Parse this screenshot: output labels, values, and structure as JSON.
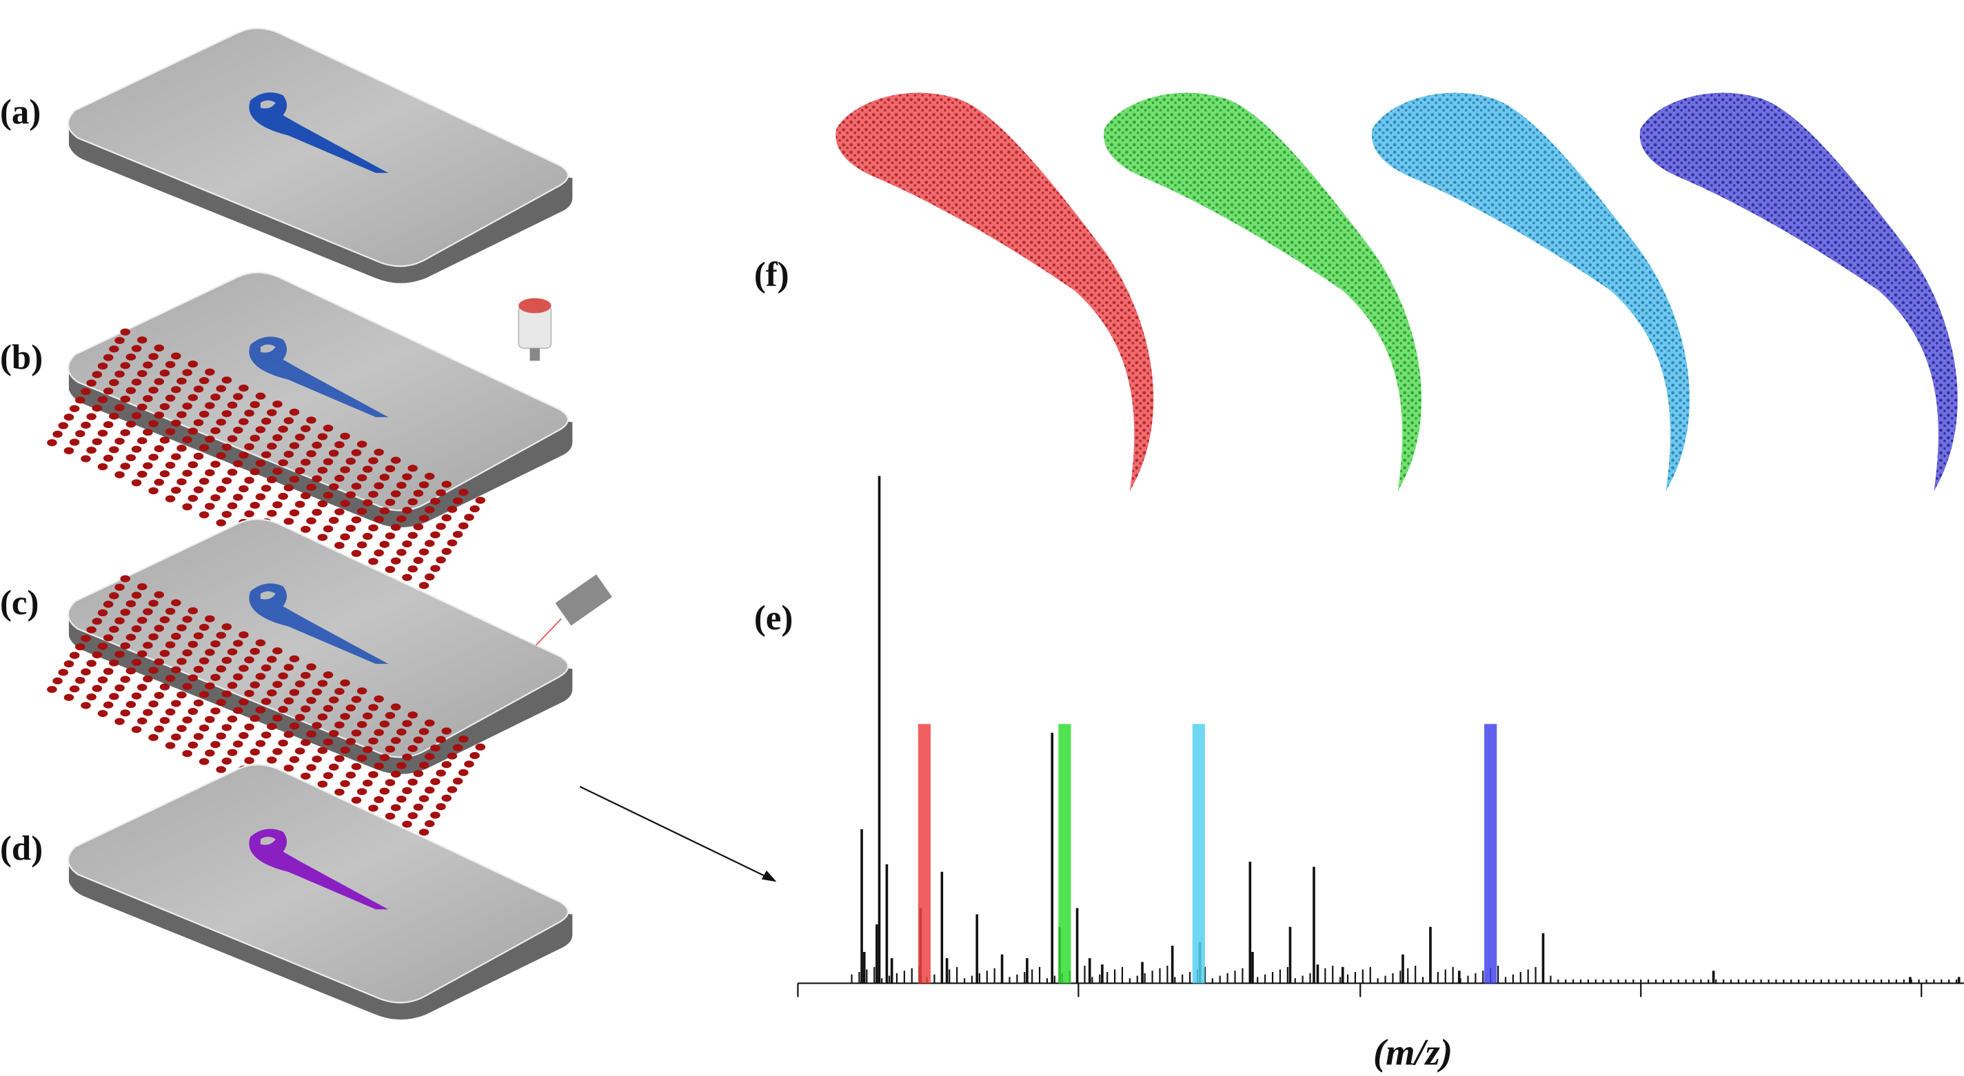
{
  "labels": [
    "(a)",
    "(b)",
    "(c)",
    "(d)",
    "(e)",
    "(f)"
  ],
  "axis_label": "(m/z)"
}
